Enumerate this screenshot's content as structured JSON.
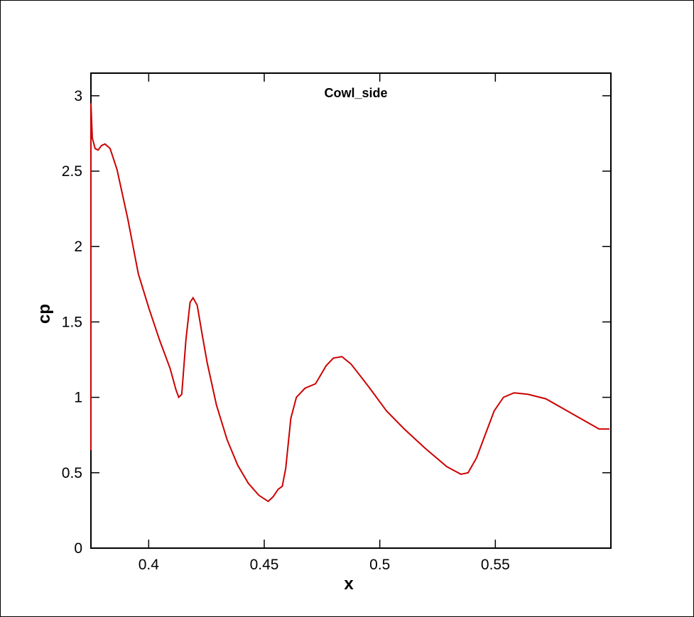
{
  "chart_data": {
    "type": "line",
    "title": "Cowl_side",
    "x_label": "x",
    "y_label": "cp",
    "x": [
      0.375,
      0.375,
      0.3756,
      0.3768,
      0.3781,
      0.3796,
      0.3811,
      0.3833,
      0.3863,
      0.391,
      0.3955,
      0.4001,
      0.4047,
      0.4093,
      0.4118,
      0.413,
      0.4143,
      0.4161,
      0.4179,
      0.4192,
      0.421,
      0.4231,
      0.4253,
      0.4293,
      0.4339,
      0.4385,
      0.4431,
      0.4477,
      0.4517,
      0.4538,
      0.456,
      0.4578,
      0.4593,
      0.4615,
      0.4639,
      0.4676,
      0.4722,
      0.4768,
      0.4799,
      0.4836,
      0.4876,
      0.4952,
      0.5029,
      0.5106,
      0.5198,
      0.529,
      0.5351,
      0.5382,
      0.5419,
      0.5458,
      0.5495,
      0.5535,
      0.5581,
      0.5642,
      0.5719,
      0.5811,
      0.5903,
      0.5949,
      0.5994
    ],
    "series": [
      {
        "color": "#cc0000",
        "values": [
          0.65,
          2.95,
          2.72,
          2.65,
          2.64,
          2.67,
          2.68,
          2.65,
          2.51,
          2.18,
          1.82,
          1.59,
          1.38,
          1.19,
          1.05,
          1.0,
          1.02,
          1.38,
          1.63,
          1.66,
          1.61,
          1.42,
          1.23,
          0.95,
          0.72,
          0.55,
          0.43,
          0.35,
          0.31,
          0.34,
          0.39,
          0.41,
          0.53,
          0.86,
          1.0,
          1.06,
          1.09,
          1.21,
          1.26,
          1.27,
          1.22,
          1.07,
          0.91,
          0.79,
          0.66,
          0.54,
          0.49,
          0.5,
          0.6,
          0.76,
          0.91,
          1.0,
          1.03,
          1.02,
          0.99,
          0.91,
          0.83,
          0.79,
          0.79
        ]
      }
    ],
    "xlim": [
      0.375,
      0.6
    ],
    "ylim": [
      0,
      3.15
    ],
    "xticks": [
      0.4,
      0.45,
      0.5,
      0.55
    ],
    "yticks": [
      0,
      0.5,
      1,
      1.5,
      2,
      2.5,
      3
    ]
  }
}
